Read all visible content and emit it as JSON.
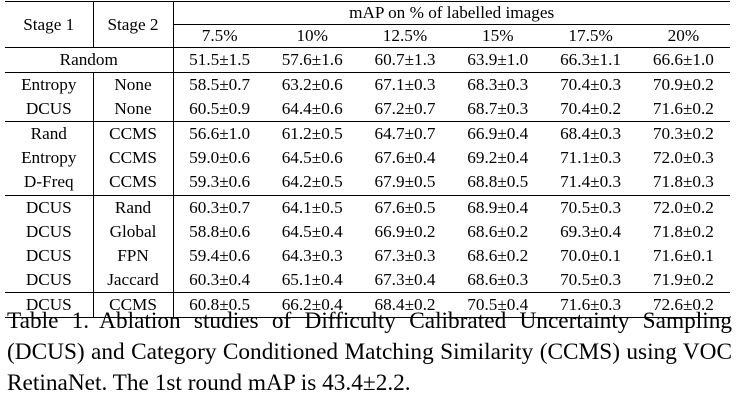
{
  "table": {
    "header": {
      "stage1": "Stage 1",
      "stage2": "Stage 2",
      "group": "mAP on % of labelled images",
      "percents": [
        "7.5%",
        "10%",
        "12.5%",
        "15%",
        "17.5%",
        "20%"
      ]
    },
    "random_row": {
      "label": "Random",
      "values": [
        "51.5±1.5",
        "57.6±1.6",
        "60.7±1.3",
        "63.9±1.0",
        "66.3±1.1",
        "66.6±1.0"
      ]
    },
    "groups": [
      [
        {
          "s1": "Entropy",
          "s2": "None",
          "values": [
            "58.5±0.7",
            "63.2±0.6",
            "67.1±0.3",
            "68.3±0.3",
            "70.4±0.3",
            "70.9±0.2"
          ]
        },
        {
          "s1": "DCUS",
          "s2": "None",
          "values": [
            "60.5±0.9",
            "64.4±0.6",
            "67.2±0.7",
            "68.7±0.3",
            "70.4±0.2",
            "71.6±0.2"
          ]
        }
      ],
      [
        {
          "s1": "Rand",
          "s2": "CCMS",
          "values": [
            "56.6±1.0",
            "61.2±0.5",
            "64.7±0.7",
            "66.9±0.4",
            "68.4±0.3",
            "70.3±0.2"
          ]
        },
        {
          "s1": "Entropy",
          "s2": "CCMS",
          "values": [
            "59.0±0.6",
            "64.5±0.6",
            "67.6±0.4",
            "69.2±0.4",
            "71.1±0.3",
            "72.0±0.3"
          ]
        },
        {
          "s1": "D-Freq",
          "s2": "CCMS",
          "values": [
            "59.3±0.6",
            "64.2±0.5",
            "67.9±0.5",
            "68.8±0.5",
            "71.4±0.3",
            "71.8±0.3"
          ]
        }
      ],
      [
        {
          "s1": "DCUS",
          "s2": "Rand",
          "values": [
            "60.3±0.7",
            "64.1±0.5",
            "67.6±0.5",
            "68.9±0.4",
            "70.5±0.3",
            "72.0±0.2"
          ]
        },
        {
          "s1": "DCUS",
          "s2": "Global",
          "values": [
            "58.8±0.6",
            "64.5±0.4",
            "66.9±0.2",
            "68.6±0.2",
            "69.3±0.4",
            "71.8±0.2"
          ]
        },
        {
          "s1": "DCUS",
          "s2": "FPN",
          "values": [
            "59.4±0.6",
            "64.3±0.3",
            "67.3±0.3",
            "68.6±0.2",
            "70.0±0.1",
            "71.6±0.1"
          ]
        },
        {
          "s1": "DCUS",
          "s2": "Jaccard",
          "values": [
            "60.3±0.4",
            "65.1±0.4",
            "67.3±0.4",
            "68.6±0.3",
            "70.5±0.3",
            "71.9±0.2"
          ]
        }
      ],
      [
        {
          "s1": "DCUS",
          "s2": "CCMS",
          "values": [
            "60.8±0.5",
            "66.2±0.4",
            "68.4±0.2",
            "70.5±0.4",
            "71.6±0.3",
            "72.6±0.2"
          ]
        }
      ]
    ]
  },
  "caption": {
    "label": "Table 1.",
    "text": "Ablation studies of Difficulty Calibrated Uncertainty Sampling (DCUS) and Category Conditioned Matching Similarity (CCMS) using VOC RetinaNet. The 1st round mAP is 43.4±2.2."
  }
}
